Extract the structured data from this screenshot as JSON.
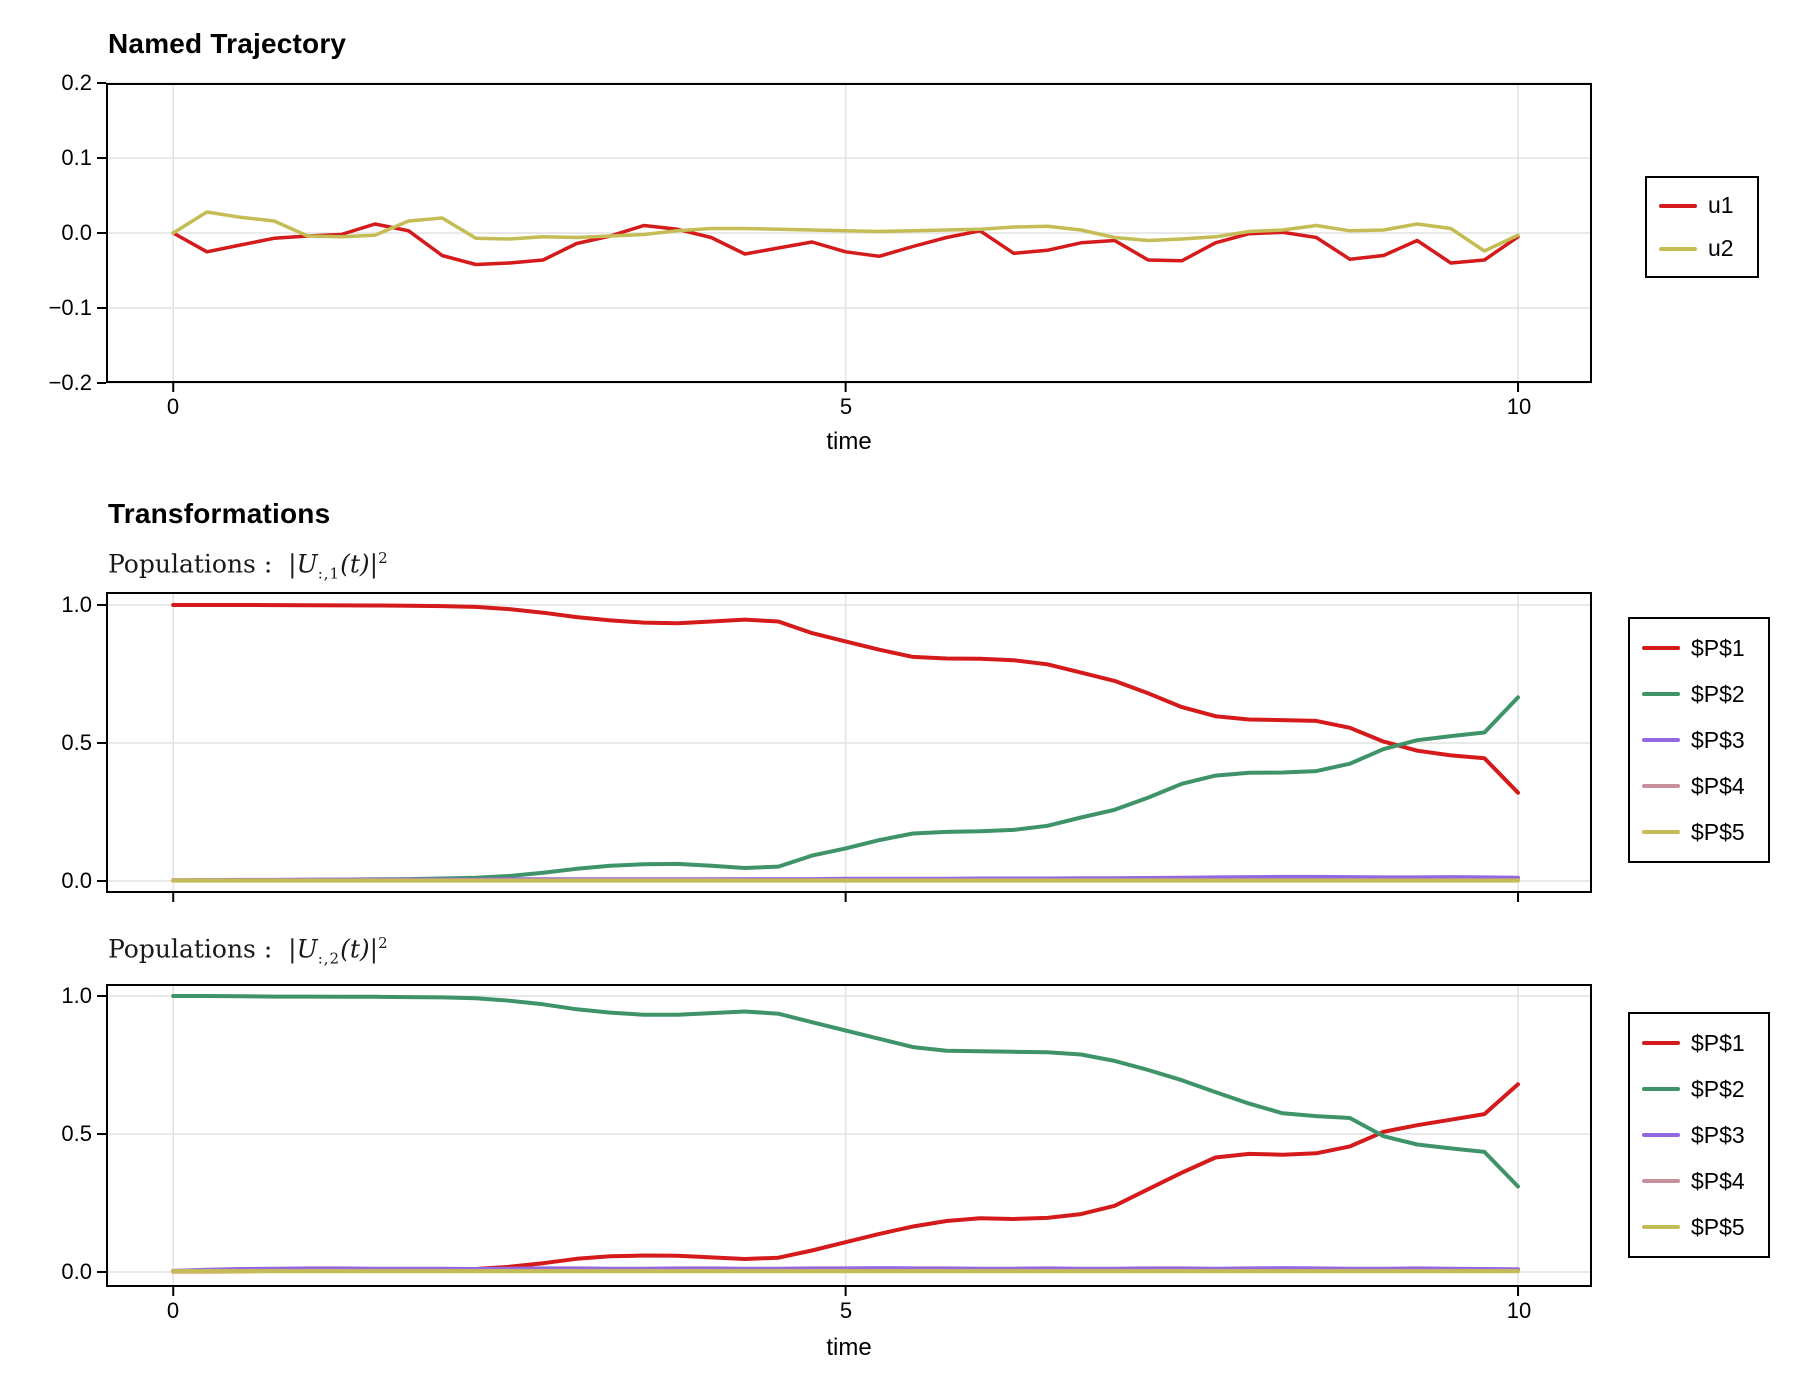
{
  "figure": {
    "background": "#ffffff",
    "grid_color": "#e2e2e2",
    "frame_color": "#000000",
    "panel1": {
      "title": "Named Trajectory",
      "xlabel": "time"
    },
    "panel2": {
      "title": "Transformations",
      "subtitle_plain": "Populations : |U_{:,1}(t)|^2",
      "subtitle_parts": {
        "prefix": "Populations :",
        "bar_open": "|",
        "symbol": "U",
        "subscript": ":,1",
        "argument": "(t)",
        "bar_close": "|",
        "superscript": "2"
      }
    },
    "panel3": {
      "subtitle_plain": "Populations : |U_{:,2}(t)|^2",
      "subtitle_parts": {
        "prefix": "Populations :",
        "bar_open": "|",
        "symbol": "U",
        "subscript": ":,2",
        "argument": "(t)",
        "bar_close": "|",
        "superscript": "2"
      },
      "xlabel": "time"
    }
  },
  "chart_data": [
    {
      "type": "line",
      "title": "Named Trajectory",
      "xlabel": "time",
      "ylabel": "",
      "grid": true,
      "legend_position": "right-outside",
      "xlim": [
        -0.5,
        10.55
      ],
      "ylim": [
        -0.2,
        0.2
      ],
      "x_ticks": {
        "values": [
          0,
          5,
          10
        ],
        "labels": [
          "0",
          "5",
          "10"
        ]
      },
      "y_ticks": {
        "values": [
          0.2,
          0.1,
          0.0,
          -0.1,
          -0.2
        ],
        "labels": [
          "0.2",
          "0.1",
          "0.0",
          "−0.1",
          "−0.2"
        ]
      },
      "x": [
        0,
        0.25,
        0.5,
        0.75,
        1,
        1.25,
        1.5,
        1.75,
        2,
        2.25,
        2.5,
        2.75,
        3,
        3.25,
        3.5,
        3.75,
        4,
        4.25,
        4.5,
        4.75,
        5,
        5.25,
        5.5,
        5.75,
        6,
        6.25,
        6.5,
        6.75,
        7,
        7.25,
        7.5,
        7.75,
        8,
        8.25,
        8.5,
        8.75,
        9,
        9.25,
        9.5,
        9.75,
        10
      ],
      "series": [
        {
          "name": "u1",
          "color": "#d41a1a",
          "values": [
            0,
            -0.025,
            -0.016,
            -0.007,
            -0.004,
            -0.002,
            0.012,
            0.003,
            -0.03,
            -0.042,
            -0.04,
            -0.036,
            -0.014,
            -0.004,
            0.01,
            0.005,
            -0.006,
            -0.028,
            -0.02,
            -0.012,
            -0.025,
            -0.031,
            -0.018,
            -0.006,
            0.003,
            -0.027,
            -0.023,
            -0.013,
            -0.01,
            -0.036,
            -0.037,
            -0.013,
            -0.001,
            0.001,
            -0.006,
            -0.035,
            -0.03,
            -0.01,
            -0.04,
            -0.036,
            -0.005
          ]
        },
        {
          "name": "u2",
          "color": "#c4bd55",
          "values": [
            0,
            0.028,
            0.021,
            0.016,
            -0.004,
            -0.005,
            -0.003,
            0.016,
            0.02,
            -0.007,
            -0.008,
            -0.005,
            -0.006,
            -0.004,
            -0.002,
            0.003,
            0.006,
            0.006,
            0.005,
            0.004,
            0.003,
            0.002,
            0.003,
            0.004,
            0.005,
            0.008,
            0.009,
            0.004,
            -0.006,
            -0.01,
            -0.008,
            -0.005,
            0.002,
            0.004,
            0.01,
            0.003,
            0.004,
            0.012,
            0.006,
            -0.024,
            -0.003
          ]
        }
      ]
    },
    {
      "type": "line",
      "title": "Transformations",
      "subtitle": "Populations : |U_{:,1}(t)|^2",
      "xlabel": "",
      "ylabel": "",
      "grid": true,
      "legend_position": "right-outside",
      "xlim": [
        -0.5,
        10.55
      ],
      "ylim": [
        0,
        1
      ],
      "x_ticks": {
        "values": [
          0,
          5,
          10
        ],
        "labels": []
      },
      "y_ticks": {
        "values": [
          1.0,
          0.5,
          0.0
        ],
        "labels": [
          "1.0",
          "0.5",
          "0.0"
        ]
      },
      "x": [
        0,
        0.25,
        0.5,
        0.75,
        1,
        1.25,
        1.5,
        1.75,
        2,
        2.25,
        2.5,
        2.75,
        3,
        3.25,
        3.5,
        3.75,
        4,
        4.25,
        4.5,
        4.75,
        5,
        5.25,
        5.5,
        5.75,
        6,
        6.25,
        6.5,
        6.75,
        7,
        7.25,
        7.5,
        7.75,
        8,
        8.25,
        8.5,
        8.75,
        9,
        9.25,
        9.5,
        9.75,
        10
      ],
      "series": [
        {
          "name": "$P$1",
          "color": "#d41a1a",
          "values": [
            1,
            1,
            1,
            0.9995,
            0.999,
            0.9985,
            0.998,
            0.9975,
            0.996,
            0.993,
            0.985,
            0.972,
            0.956,
            0.944,
            0.936,
            0.934,
            0.94,
            0.947,
            0.94,
            0.898,
            0.868,
            0.838,
            0.812,
            0.806,
            0.805,
            0.8,
            0.785,
            0.755,
            0.725,
            0.68,
            0.63,
            0.597,
            0.585,
            0.583,
            0.58,
            0.555,
            0.505,
            0.472,
            0.455,
            0.445,
            0.32
          ]
        },
        {
          "name": "$P$2",
          "color": "#3e9468",
          "values": [
            0.002,
            0.002,
            0.003,
            0.003,
            0.004,
            0.005,
            0.006,
            0.007,
            0.009,
            0.012,
            0.018,
            0.03,
            0.044,
            0.055,
            0.061,
            0.062,
            0.055,
            0.047,
            0.052,
            0.092,
            0.118,
            0.148,
            0.172,
            0.178,
            0.18,
            0.185,
            0.2,
            0.23,
            0.258,
            0.302,
            0.352,
            0.382,
            0.392,
            0.393,
            0.398,
            0.425,
            0.478,
            0.51,
            0.525,
            0.538,
            0.665
          ]
        },
        {
          "name": "$P$3",
          "color": "#9268e2",
          "values": [
            0.002,
            0.003,
            0.004,
            0.004,
            0.005,
            0.005,
            0.005,
            0.005,
            0.005,
            0.005,
            0.006,
            0.006,
            0.006,
            0.006,
            0.006,
            0.006,
            0.006,
            0.007,
            0.007,
            0.007,
            0.008,
            0.008,
            0.008,
            0.008,
            0.009,
            0.009,
            0.009,
            0.01,
            0.01,
            0.011,
            0.012,
            0.013,
            0.014,
            0.015,
            0.015,
            0.014,
            0.013,
            0.013,
            0.014,
            0.013,
            0.012
          ]
        },
        {
          "name": "$P$4",
          "color": "#c7909b",
          "values": [
            0.003,
            0.003,
            0.003,
            0.003,
            0.003,
            0.003,
            0.003,
            0.003,
            0.003,
            0.003,
            0.003,
            0.003,
            0.003,
            0.003,
            0.003,
            0.003,
            0.003,
            0.003,
            0.003,
            0.003,
            0.003,
            0.003,
            0.003,
            0.003,
            0.003,
            0.003,
            0.003,
            0.003,
            0.003,
            0.003,
            0.003,
            0.003,
            0.003,
            0.003,
            0.003,
            0.003,
            0.003,
            0.003,
            0.003,
            0.003,
            0.003
          ]
        },
        {
          "name": "$P$5",
          "color": "#c4bd55",
          "values": [
            0.0015,
            0.0015,
            0.0015,
            0.0015,
            0.0015,
            0.0015,
            0.0015,
            0.0015,
            0.0015,
            0.0015,
            0.0015,
            0.0015,
            0.0015,
            0.0015,
            0.0015,
            0.0015,
            0.0015,
            0.0015,
            0.0015,
            0.0015,
            0.0015,
            0.0015,
            0.0015,
            0.0015,
            0.0015,
            0.0015,
            0.0015,
            0.0015,
            0.0015,
            0.0015,
            0.0015,
            0.0015,
            0.0015,
            0.0015,
            0.0015,
            0.0015,
            0.0015,
            0.0015,
            0.0015,
            0.0015,
            0.0015
          ]
        }
      ]
    },
    {
      "type": "line",
      "title": "",
      "subtitle": "Populations : |U_{:,2}(t)|^2",
      "xlabel": "time",
      "ylabel": "",
      "grid": true,
      "legend_position": "right-outside",
      "xlim": [
        -0.5,
        10.55
      ],
      "ylim": [
        0,
        1
      ],
      "x_ticks": {
        "values": [
          0,
          5,
          10
        ],
        "labels": [
          "0",
          "5",
          "10"
        ]
      },
      "y_ticks": {
        "values": [
          1.0,
          0.5,
          0.0
        ],
        "labels": [
          "1.0",
          "0.5",
          "0.0"
        ]
      },
      "x": [
        0,
        0.25,
        0.5,
        0.75,
        1,
        1.25,
        1.5,
        1.75,
        2,
        2.25,
        2.5,
        2.75,
        3,
        3.25,
        3.5,
        3.75,
        4,
        4.25,
        4.5,
        4.75,
        5,
        5.25,
        5.5,
        5.75,
        6,
        6.25,
        6.5,
        6.75,
        7,
        7.25,
        7.5,
        7.75,
        8,
        8.25,
        8.5,
        8.75,
        9,
        9.25,
        9.5,
        9.75,
        10
      ],
      "series": [
        {
          "name": "$P$1",
          "color": "#d41a1a",
          "values": [
            0.002,
            0.002,
            0.003,
            0.004,
            0.005,
            0.006,
            0.006,
            0.007,
            0.008,
            0.011,
            0.019,
            0.032,
            0.048,
            0.057,
            0.06,
            0.059,
            0.053,
            0.047,
            0.052,
            0.078,
            0.108,
            0.138,
            0.165,
            0.185,
            0.195,
            0.192,
            0.196,
            0.21,
            0.24,
            0.3,
            0.36,
            0.415,
            0.428,
            0.425,
            0.43,
            0.455,
            0.508,
            0.532,
            0.552,
            0.572,
            0.68
          ]
        },
        {
          "name": "$P$2",
          "color": "#3e9468",
          "values": [
            1,
            1,
            0.999,
            0.998,
            0.998,
            0.997,
            0.997,
            0.996,
            0.995,
            0.992,
            0.983,
            0.97,
            0.952,
            0.94,
            0.932,
            0.932,
            0.938,
            0.944,
            0.936,
            0.905,
            0.875,
            0.845,
            0.815,
            0.802,
            0.8,
            0.798,
            0.796,
            0.788,
            0.765,
            0.732,
            0.695,
            0.652,
            0.61,
            0.575,
            0.565,
            0.558,
            0.492,
            0.462,
            0.448,
            0.435,
            0.31
          ]
        },
        {
          "name": "$P$3",
          "color": "#9268e2",
          "values": [
            0.004,
            0.008,
            0.011,
            0.012,
            0.013,
            0.013,
            0.012,
            0.012,
            0.012,
            0.011,
            0.012,
            0.013,
            0.013,
            0.012,
            0.012,
            0.013,
            0.013,
            0.012,
            0.012,
            0.013,
            0.013,
            0.014,
            0.013,
            0.013,
            0.012,
            0.012,
            0.013,
            0.012,
            0.012,
            0.013,
            0.013,
            0.012,
            0.013,
            0.014,
            0.013,
            0.012,
            0.012,
            0.013,
            0.012,
            0.011,
            0.01
          ]
        },
        {
          "name": "$P$4",
          "color": "#c7909b",
          "values": [
            0.004,
            0.004,
            0.004,
            0.004,
            0.004,
            0.004,
            0.004,
            0.004,
            0.004,
            0.004,
            0.004,
            0.004,
            0.004,
            0.004,
            0.004,
            0.004,
            0.004,
            0.004,
            0.004,
            0.004,
            0.004,
            0.004,
            0.004,
            0.004,
            0.004,
            0.004,
            0.004,
            0.004,
            0.004,
            0.004,
            0.004,
            0.004,
            0.004,
            0.004,
            0.004,
            0.004,
            0.004,
            0.004,
            0.004,
            0.004,
            0.004
          ]
        },
        {
          "name": "$P$5",
          "color": "#c4bd55",
          "values": [
            0.003,
            0.003,
            0.003,
            0.003,
            0.003,
            0.003,
            0.003,
            0.003,
            0.003,
            0.003,
            0.003,
            0.003,
            0.003,
            0.003,
            0.003,
            0.003,
            0.003,
            0.003,
            0.003,
            0.003,
            0.003,
            0.003,
            0.003,
            0.003,
            0.003,
            0.003,
            0.003,
            0.003,
            0.003,
            0.003,
            0.003,
            0.003,
            0.003,
            0.003,
            0.003,
            0.003,
            0.003,
            0.003,
            0.003,
            0.003,
            0.003
          ]
        }
      ]
    }
  ]
}
